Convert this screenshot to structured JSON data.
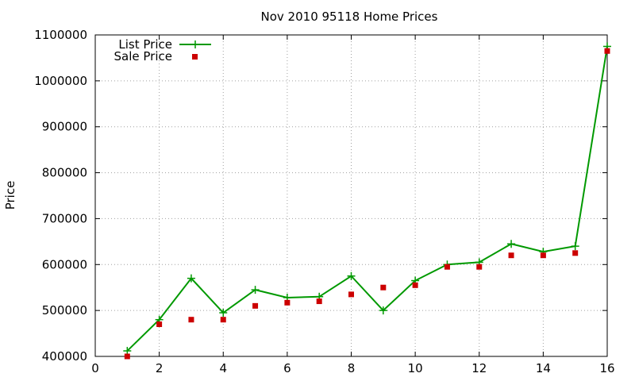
{
  "chart_data": {
    "type": "line",
    "title": "Nov 2010 95118 Home Prices",
    "ylabel": "Price",
    "xlabel": "",
    "xlim": [
      0,
      16
    ],
    "ylim": [
      400000,
      1100000
    ],
    "x_ticks": [
      0,
      2,
      4,
      6,
      8,
      10,
      12,
      14,
      16
    ],
    "y_ticks": [
      400000,
      500000,
      600000,
      700000,
      800000,
      900000,
      1000000,
      1100000
    ],
    "grid": true,
    "legend_position": "top-left",
    "series": [
      {
        "name": "List Price",
        "kind": "line-with-plus-markers",
        "color": "#009900",
        "x": [
          1,
          2,
          3,
          4,
          5,
          6,
          7,
          8,
          9,
          10,
          11,
          12,
          13,
          14,
          15,
          16
        ],
        "values": [
          412000,
          480000,
          570000,
          495000,
          545000,
          528000,
          530000,
          575000,
          500000,
          565000,
          600000,
          605000,
          645000,
          628000,
          640000,
          1075000
        ]
      },
      {
        "name": "Sale Price",
        "kind": "square-points",
        "color": "#cc0000",
        "x": [
          1,
          2,
          3,
          4,
          5,
          6,
          7,
          8,
          9,
          10,
          11,
          12,
          13,
          14,
          15,
          16
        ],
        "values": [
          400000,
          470000,
          480000,
          480000,
          510000,
          517000,
          520000,
          535000,
          550000,
          555000,
          595000,
          595000,
          620000,
          620000,
          625000,
          1065000
        ]
      }
    ]
  }
}
